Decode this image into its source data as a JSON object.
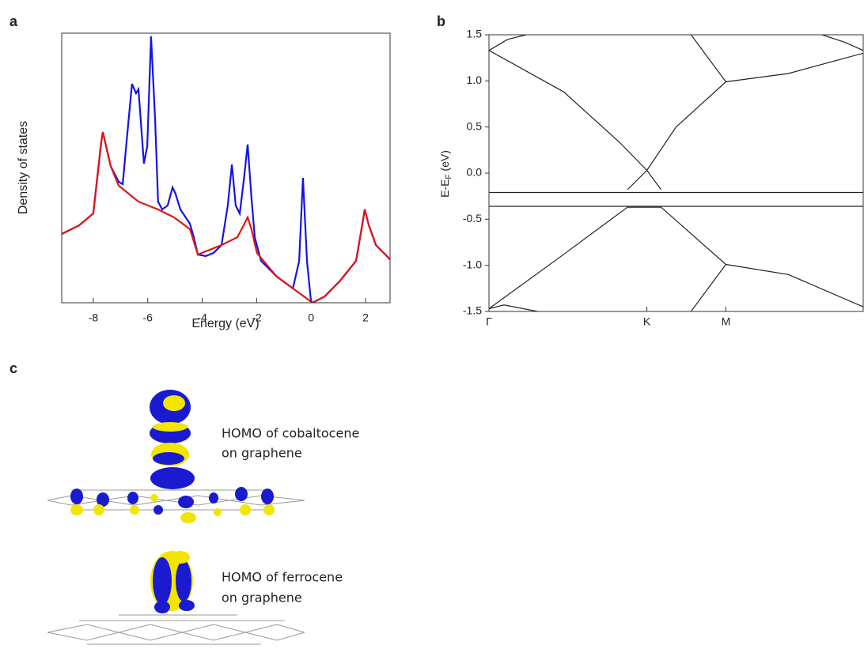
{
  "chart_data": [
    {
      "type": "line",
      "panel": "a",
      "xlabel": "Energy (eV)",
      "ylabel": "Density of states",
      "xlim": [
        -9.16,
        2.9
      ],
      "ylim": [
        0,
        1
      ],
      "xticks": [
        -8,
        -6,
        -4,
        -2,
        0,
        2
      ],
      "series": [
        {
          "color": "#1414e6",
          "x": [
            -9.16,
            -8.52,
            -8.0,
            -7.71,
            -7.65,
            -7.36,
            -7.07,
            -6.92,
            -6.78,
            -6.58,
            -6.43,
            -6.34,
            -6.14,
            -6.02,
            -5.88,
            -5.73,
            -5.62,
            -5.47,
            -5.27,
            -5.09,
            -4.98,
            -4.8,
            -4.45,
            -4.31,
            -4.16,
            -3.87,
            -3.58,
            -3.29,
            -3.06,
            -2.91,
            -2.77,
            -2.62,
            -2.48,
            -2.33,
            -2.19,
            -2.07,
            -1.84,
            -1.26,
            -0.67,
            -0.44,
            -0.3,
            -0.15,
            -0.01,
            0.05,
            0.49,
            1.07,
            1.65,
            1.85,
            1.97,
            2.12,
            2.38,
            2.9
          ],
          "values": [
            0.255,
            0.287,
            0.331,
            0.595,
            0.633,
            0.507,
            0.449,
            0.44,
            0.595,
            0.812,
            0.777,
            0.792,
            0.516,
            0.581,
            0.988,
            0.683,
            0.375,
            0.346,
            0.361,
            0.428,
            0.405,
            0.346,
            0.293,
            0.243,
            0.179,
            0.173,
            0.185,
            0.214,
            0.361,
            0.513,
            0.361,
            0.331,
            0.449,
            0.587,
            0.39,
            0.243,
            0.155,
            0.097,
            0.053,
            0.155,
            0.463,
            0.155,
            0.009,
            0,
            0.023,
            0.082,
            0.155,
            0.273,
            0.346,
            0.287,
            0.214,
            0.161
          ]
        },
        {
          "color": "#e01414",
          "x": [
            -9.16,
            -8.52,
            -8.0,
            -7.71,
            -7.65,
            -7.36,
            -7.07,
            -6.34,
            -5.62,
            -5.04,
            -4.45,
            -4.16,
            -3.29,
            -2.71,
            -2.48,
            -2.33,
            -2.19,
            -1.99,
            -1.26,
            -0.67,
            -0.38,
            0.05,
            0.49,
            1.07,
            1.65,
            1.85,
            1.97,
            2.12,
            2.38,
            2.9
          ],
          "values": [
            0.255,
            0.287,
            0.331,
            0.595,
            0.633,
            0.507,
            0.435,
            0.375,
            0.346,
            0.317,
            0.273,
            0.179,
            0.214,
            0.243,
            0.287,
            0.317,
            0.273,
            0.185,
            0.097,
            0.053,
            0.032,
            0,
            0.023,
            0.082,
            0.155,
            0.273,
            0.346,
            0.287,
            0.214,
            0.161
          ]
        }
      ]
    },
    {
      "type": "line",
      "panel": "b",
      "ylabel": [
        "E-E",
        "F",
        " (eV)"
      ],
      "xlim": [
        0,
        1
      ],
      "ylim": [
        -1.5,
        1.5
      ],
      "xticks": [
        {
          "value": 0,
          "label": "Γ"
        },
        {
          "value": 0.422,
          "label": "K"
        },
        {
          "value": 0.633,
          "label": "M"
        }
      ],
      "yticks": [
        1.5,
        {
          "value": 1,
          "label": "1.0"
        },
        0.5,
        {
          "value": 0,
          "label": "0.0"
        },
        -0.5,
        {
          "value": -1,
          "label": "-1.0"
        },
        -1.5
      ],
      "series": [
        {
          "color": "#222222",
          "x": [
            0,
            0.2,
            0.35,
            0.422,
            0.46
          ],
          "values": [
            1.33,
            0.88,
            0.33,
            0.03,
            -0.18
          ]
        },
        {
          "color": "#222222",
          "x": [
            0.37,
            0.422,
            0.5,
            0.633,
            0.8,
            1
          ],
          "values": [
            -0.18,
            0.03,
            0.5,
            0.99,
            1.08,
            1.3
          ]
        },
        {
          "color": "#222222",
          "x": [
            0,
            0.2,
            0.37,
            0.46,
            0.633,
            0.8,
            1
          ],
          "values": [
            -1.47,
            -0.88,
            -0.37,
            -0.37,
            -0.99,
            -1.1,
            -1.45
          ]
        },
        {
          "color": "#222222",
          "x": [
            0.54,
            0.633
          ],
          "values": [
            1.5,
            0.99
          ]
        },
        {
          "color": "#222222",
          "x": [
            0.54,
            0.633
          ],
          "values": [
            -1.5,
            -0.99
          ]
        },
        {
          "color": "#222222",
          "x": [
            0,
            0.05,
            0.1
          ],
          "values": [
            1.33,
            1.45,
            1.5
          ]
        },
        {
          "color": "#222222",
          "x": [
            0.89,
            0.95,
            1
          ],
          "values": [
            1.5,
            1.42,
            1.33
          ]
        },
        {
          "color": "#222222",
          "x": [
            0,
            0.04,
            0.13
          ],
          "values": [
            -1.47,
            -1.43,
            -1.5
          ]
        },
        {
          "color": "#222222",
          "x": [
            0,
            1
          ],
          "values": [
            -0.21,
            -0.21
          ]
        },
        {
          "color": "#222222",
          "x": [
            0,
            1
          ],
          "values": [
            -0.36,
            -0.36
          ]
        }
      ]
    }
  ],
  "panel_c": {
    "panel": "c",
    "captions": [
      [
        "HOMO of cobaltocene",
        "on graphene"
      ],
      [
        "HOMO of ferrocene",
        "on graphene"
      ]
    ]
  }
}
